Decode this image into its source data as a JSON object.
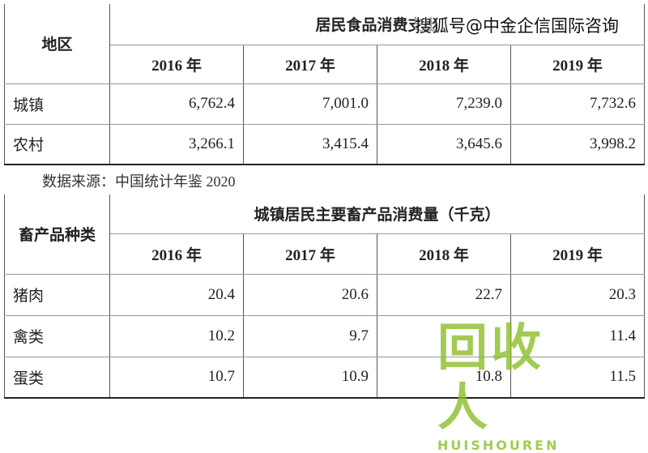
{
  "table1": {
    "corner": "地区",
    "header": "居民食品消费支出",
    "years": [
      "2016 年",
      "2017 年",
      "2018 年",
      "2019 年"
    ],
    "rows": [
      [
        "城镇",
        "6,762.4",
        "7,001.0",
        "7,239.0",
        "7,732.6"
      ],
      [
        "农村",
        "3,266.1",
        "3,415.4",
        "3,645.6",
        "3,998.2"
      ]
    ]
  },
  "source": "数据来源：中国统计年鉴 2020",
  "table2": {
    "corner": "畜产品种类",
    "header": "城镇居民主要畜产品消费量（千克）",
    "years": [
      "2016 年",
      "2017 年",
      "2018 年",
      "2019 年"
    ],
    "rows": [
      [
        "猪肉",
        "20.4",
        "20.6",
        "22.7",
        "20.3"
      ],
      [
        "禽类",
        "10.2",
        "9.7",
        null,
        "11.4"
      ],
      [
        "蛋类",
        "10.7",
        "10.9",
        "10.8",
        "11.5"
      ]
    ]
  },
  "watermarks": {
    "top": "搜狐号@中金企信国际咨询",
    "logo": "回收人",
    "logo_sub": "HUISHOUREN"
  }
}
